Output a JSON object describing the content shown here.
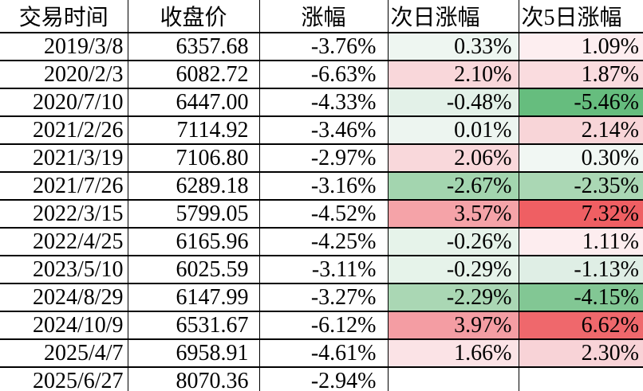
{
  "table": {
    "columns": [
      {
        "id": "date",
        "label": "交易时间"
      },
      {
        "id": "close",
        "label": "收盘价"
      },
      {
        "id": "change",
        "label": "涨幅"
      },
      {
        "id": "next_day",
        "label": "次日涨幅"
      },
      {
        "id": "next_5day",
        "label": "次5日涨幅"
      }
    ],
    "rows": [
      {
        "date": "2019/3/8",
        "close": "6357.68",
        "change": "-3.76%",
        "next_day": "0.33%",
        "next_day_bg": "#eef6f1",
        "next_5day": "1.09%",
        "next_5day_bg": "#fdeef0"
      },
      {
        "date": "2020/2/3",
        "close": "6082.72",
        "change": "-6.63%",
        "next_day": "2.10%",
        "next_day_bg": "#f9d7da",
        "next_5day": "1.87%",
        "next_5day_bg": "#fadcdf"
      },
      {
        "date": "2020/7/10",
        "close": "6447.00",
        "change": "-4.33%",
        "next_day": "-0.48%",
        "next_day_bg": "#e3f1e8",
        "next_5day": "-5.46%",
        "next_5day_bg": "#66bd7e"
      },
      {
        "date": "2021/2/26",
        "close": "7114.92",
        "change": "-3.46%",
        "next_day": "0.01%",
        "next_day_bg": "#edf5f0",
        "next_5day": "2.14%",
        "next_5day_bg": "#f8d5d8"
      },
      {
        "date": "2021/3/19",
        "close": "7106.80",
        "change": "-2.97%",
        "next_day": "2.06%",
        "next_day_bg": "#f9d8db",
        "next_5day": "0.30%",
        "next_5day_bg": "#f1f7f3"
      },
      {
        "date": "2021/7/26",
        "close": "6289.18",
        "change": "-3.16%",
        "next_day": "-2.67%",
        "next_day_bg": "#a3d5af",
        "next_5day": "-2.35%",
        "next_5day_bg": "#aad7b4"
      },
      {
        "date": "2022/3/15",
        "close": "5799.05",
        "change": "-4.52%",
        "next_day": "3.57%",
        "next_day_bg": "#f5a3a8",
        "next_5day": "7.32%",
        "next_5day_bg": "#ef5f63"
      },
      {
        "date": "2022/4/25",
        "close": "6165.96",
        "change": "-4.25%",
        "next_day": "-0.26%",
        "next_day_bg": "#e6f3ea",
        "next_5day": "1.11%",
        "next_5day_bg": "#fdedef"
      },
      {
        "date": "2023/5/10",
        "close": "6025.59",
        "change": "-3.11%",
        "next_day": "-0.29%",
        "next_day_bg": "#e6f3ea",
        "next_5day": "-1.13%",
        "next_5day_bg": "#dfeee5"
      },
      {
        "date": "2024/8/29",
        "close": "6147.99",
        "change": "-3.27%",
        "next_day": "-2.29%",
        "next_day_bg": "#aad7b4",
        "next_5day": "-4.15%",
        "next_5day_bg": "#82c794"
      },
      {
        "date": "2024/10/9",
        "close": "6531.67",
        "change": "-6.12%",
        "next_day": "3.97%",
        "next_day_bg": "#f49da3",
        "next_5day": "6.62%",
        "next_5day_bg": "#ef686c"
      },
      {
        "date": "2025/4/7",
        "close": "6958.91",
        "change": "-4.61%",
        "next_day": "1.66%",
        "next_day_bg": "#fbe3e6",
        "next_5day": "2.30%",
        "next_5day_bg": "#f8d3d7"
      },
      {
        "date": "2025/6/27",
        "close": "8070.36",
        "change": "-2.94%",
        "next_day": "",
        "next_day_bg": "#ffffff",
        "next_5day": "",
        "next_5day_bg": "#ffffff"
      }
    ]
  },
  "colors": {
    "border": "#000000",
    "text": "#000000",
    "background": "#ffffff",
    "positive_strong": "#ef5f63",
    "negative_strong": "#66bd7e"
  }
}
